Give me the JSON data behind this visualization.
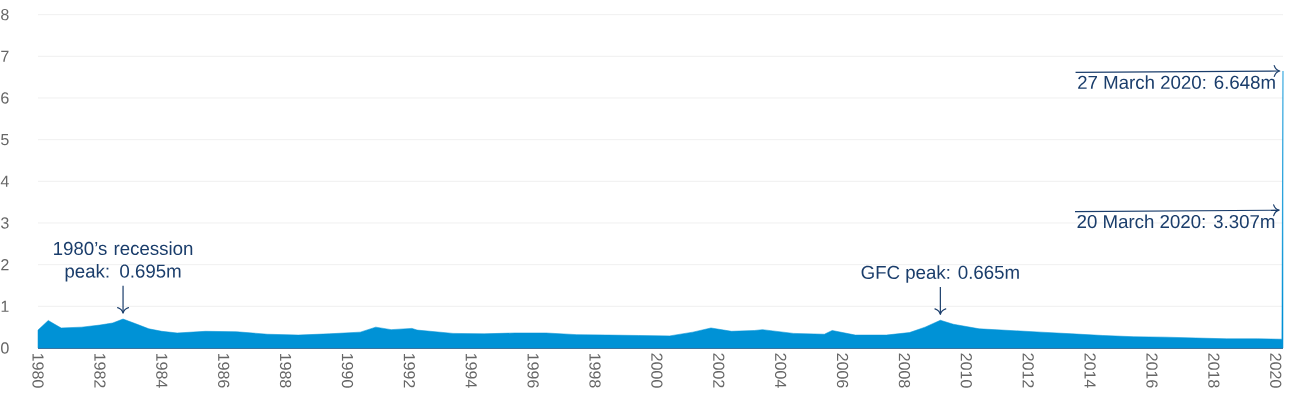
{
  "chart_data": {
    "type": "area",
    "x": [
      "1980-01",
      "1980-05",
      "1980-08",
      "1980-10",
      "1981-06",
      "1982-01",
      "1982-06",
      "1982-10",
      "1983-03",
      "1983-08",
      "1984-01",
      "1984-07",
      "1985-06",
      "1986-06",
      "1987-06",
      "1988-06",
      "1989-06",
      "1990-06",
      "1990-12",
      "1991-06",
      "1992-02",
      "1992-04",
      "1993-06",
      "1994-06",
      "1995-06",
      "1996-06",
      "1997-06",
      "1998-06",
      "1999-06",
      "2000-06",
      "2001-03",
      "2001-10",
      "2002-06",
      "2003-03",
      "2003-06",
      "2004-06",
      "2005-06",
      "2005-09",
      "2006-06",
      "2007-06",
      "2008-03",
      "2008-09",
      "2009-03",
      "2009-08",
      "2010-06",
      "2011-06",
      "2012-06",
      "2013-06",
      "2014-06",
      "2015-06",
      "2016-06",
      "2017-06",
      "2018-06",
      "2019-06",
      "2020-03-14",
      "2020-03-20",
      "2020-03-27"
    ],
    "series": [
      {
        "color": "#0092d6",
        "values": [
          0.43,
          0.66,
          0.55,
          0.48,
          0.5,
          0.55,
          0.6,
          0.695,
          0.58,
          0.46,
          0.4,
          0.36,
          0.4,
          0.39,
          0.33,
          0.31,
          0.34,
          0.38,
          0.5,
          0.44,
          0.47,
          0.43,
          0.35,
          0.34,
          0.36,
          0.36,
          0.32,
          0.31,
          0.3,
          0.29,
          0.38,
          0.48,
          0.4,
          0.42,
          0.44,
          0.35,
          0.33,
          0.42,
          0.31,
          0.31,
          0.37,
          0.5,
          0.665,
          0.57,
          0.46,
          0.42,
          0.38,
          0.34,
          0.3,
          0.27,
          0.26,
          0.24,
          0.22,
          0.22,
          0.21,
          3.307,
          6.648
        ]
      }
    ],
    "xlim": [
      "1980-01-01",
      "2020-03-27"
    ],
    "xticks": [
      "1980",
      "1982",
      "1984",
      "1986",
      "1988",
      "1990",
      "1992",
      "1994",
      "1996",
      "1998",
      "2000",
      "2002",
      "2004",
      "2006",
      "2008",
      "2010",
      "2012",
      "2014",
      "2016",
      "2018",
      "2020"
    ],
    "ylim": [
      0,
      8
    ],
    "yticks": [
      0,
      1,
      2,
      3,
      4,
      5,
      6,
      7,
      8
    ],
    "grid": "y",
    "annotations": [
      {
        "text": "1980’s recession peak: 0.695m",
        "x": "1982-10",
        "y": 0.695
      },
      {
        "text": "GFC peak: 0.665m",
        "x": "2009-03",
        "y": 0.665
      },
      {
        "text": "20 March 2020: 3.307m",
        "x": "2020-03-20",
        "y": 3.307
      },
      {
        "text": "27 March 2020: 6.648m",
        "x": "2020-03-27",
        "y": 6.648
      }
    ]
  }
}
